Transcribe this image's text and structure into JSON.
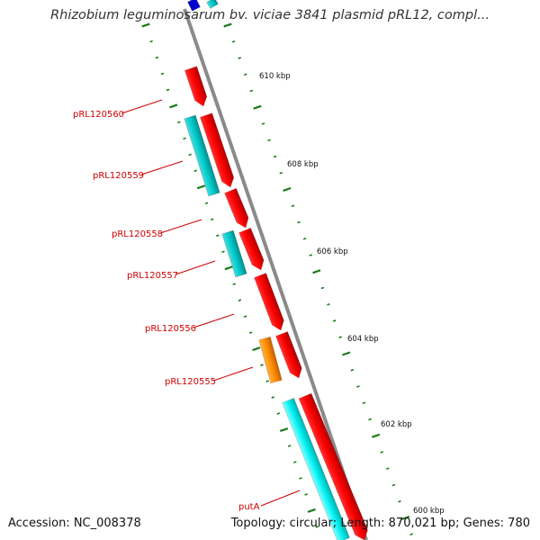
{
  "title": "Rhizobium leguminosarum bv. viciae 3841 plasmid pRL12, compl...",
  "footer": {
    "accession": "Accession: NC_008378",
    "topology": "Topology: circular",
    "length": "Length: 870,021 bp",
    "genes": "Genes: 780"
  },
  "scale_labels": [
    "610 kbp",
    "608 kbp",
    "606 kbp",
    "604 kbp",
    "602 kbp",
    "600 kbp"
  ],
  "gene_labels": [
    "pRL120560",
    "pRL120559",
    "pRL120558",
    "pRL120557",
    "pRL120556",
    "pRL120555",
    "putA"
  ],
  "colors": {
    "forward_gene": "#ff0000",
    "reverse_gene": "#00cccc",
    "reverse_gene_light": "#00ffff",
    "other_gene": "#ff8c00",
    "top_gene": "#0000cc",
    "backbone": "#888888",
    "tick": "#1a7a1a",
    "gene_label": "#cc0000"
  }
}
